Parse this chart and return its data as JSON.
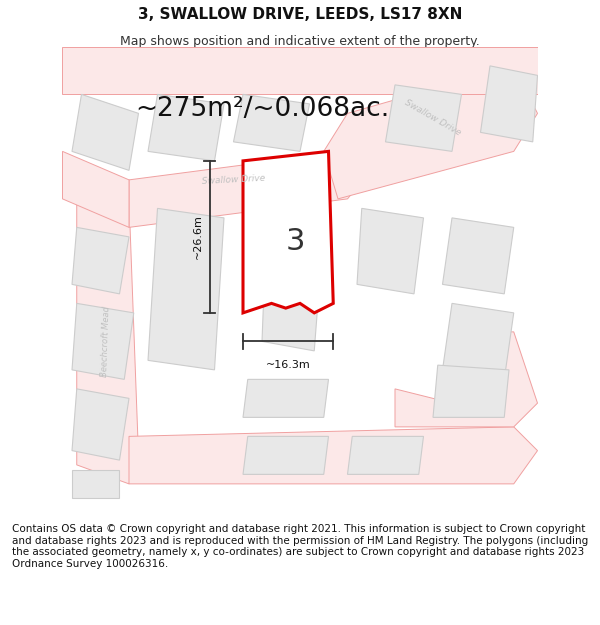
{
  "title": "3, SWALLOW DRIVE, LEEDS, LS17 8XN",
  "subtitle": "Map shows position and indicative extent of the property.",
  "area_text": "~275m²/~0.068ac.",
  "number_label": "3",
  "dim_width": "~16.3m",
  "dim_height": "~26.6m",
  "footer_text": "Contains OS data © Crown copyright and database right 2021. This information is subject to Crown copyright and database rights 2023 and is reproduced with the permission of HM Land Registry. The polygons (including the associated geometry, namely x, y co-ordinates) are subject to Crown copyright and database rights 2023 Ordnance Survey 100026316.",
  "bg_color": "#ffffff",
  "map_bg": "#ffffff",
  "road_fill": "#fce8e8",
  "road_line": "#f0a0a0",
  "building_fill": "#e8e8e8",
  "building_line": "#cccccc",
  "plot_fill": "#ffffff",
  "plot_line": "#dd0000",
  "dim_color": "#333333",
  "street_color": "#c0c0c0",
  "title_fontsize": 11,
  "subtitle_fontsize": 9,
  "area_fontsize": 19,
  "num_fontsize": 22,
  "footer_fontsize": 7.5
}
